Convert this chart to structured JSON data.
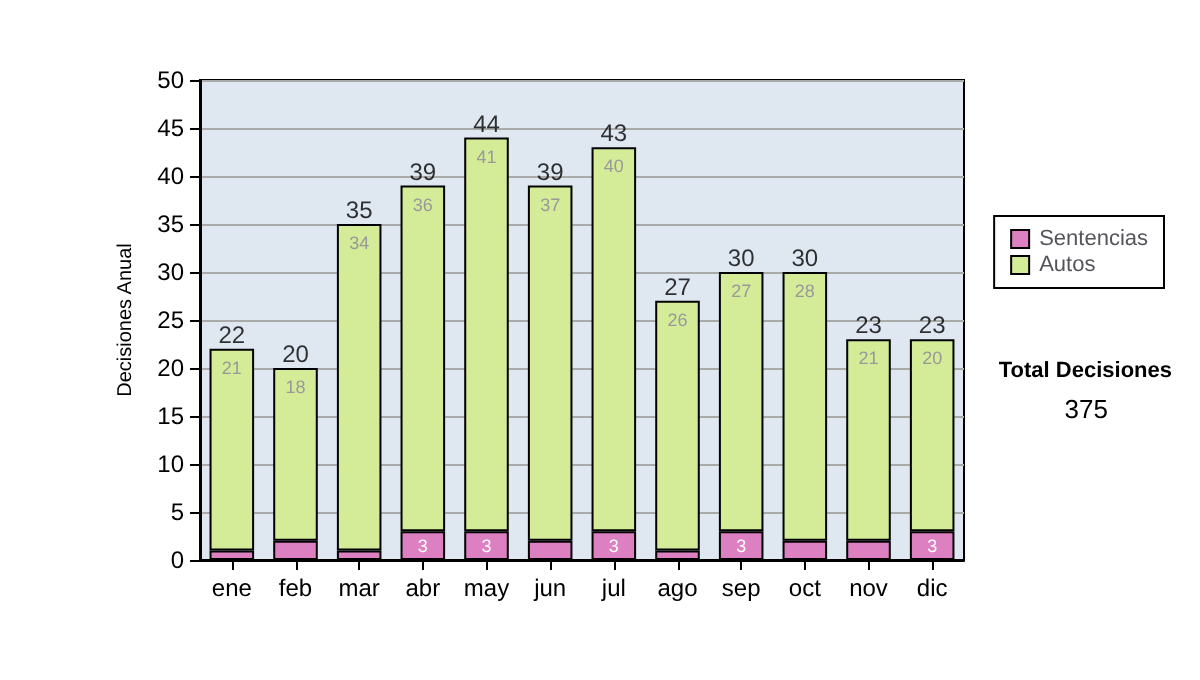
{
  "chart_data": {
    "type": "bar",
    "stacked": true,
    "ylabel": "Decisiones Anual",
    "categories": [
      "ene",
      "feb",
      "mar",
      "abr",
      "may",
      "jun",
      "jul",
      "ago",
      "sep",
      "oct",
      "nov",
      "dic"
    ],
    "series": [
      {
        "name": "Sentencias",
        "color": "#dd80c1",
        "values": [
          1,
          2,
          1,
          3,
          3,
          2,
          3,
          1,
          3,
          2,
          2,
          3
        ],
        "value_labels": [
          null,
          null,
          null,
          "3",
          "3",
          null,
          "3",
          null,
          "3",
          null,
          null,
          "3"
        ]
      },
      {
        "name": "Autos",
        "color": "#d4eb98",
        "values": [
          21,
          18,
          34,
          36,
          41,
          37,
          40,
          26,
          27,
          28,
          21,
          20
        ],
        "value_labels": [
          "21",
          "18",
          "34",
          "36",
          "41",
          "37",
          "40",
          "26",
          "27",
          "28",
          "21",
          "20"
        ]
      }
    ],
    "totals": [
      "22",
      "20",
      "35",
      "39",
      "44",
      "39",
      "43",
      "27",
      "30",
      "30",
      "23",
      "23"
    ],
    "ylim": [
      0,
      50
    ],
    "yticks": [
      0,
      5,
      10,
      15,
      20,
      25,
      30,
      35,
      40,
      45,
      50
    ],
    "grid": "y",
    "legend": "right",
    "annotations": [
      "Total Decisiones",
      "375"
    ]
  }
}
